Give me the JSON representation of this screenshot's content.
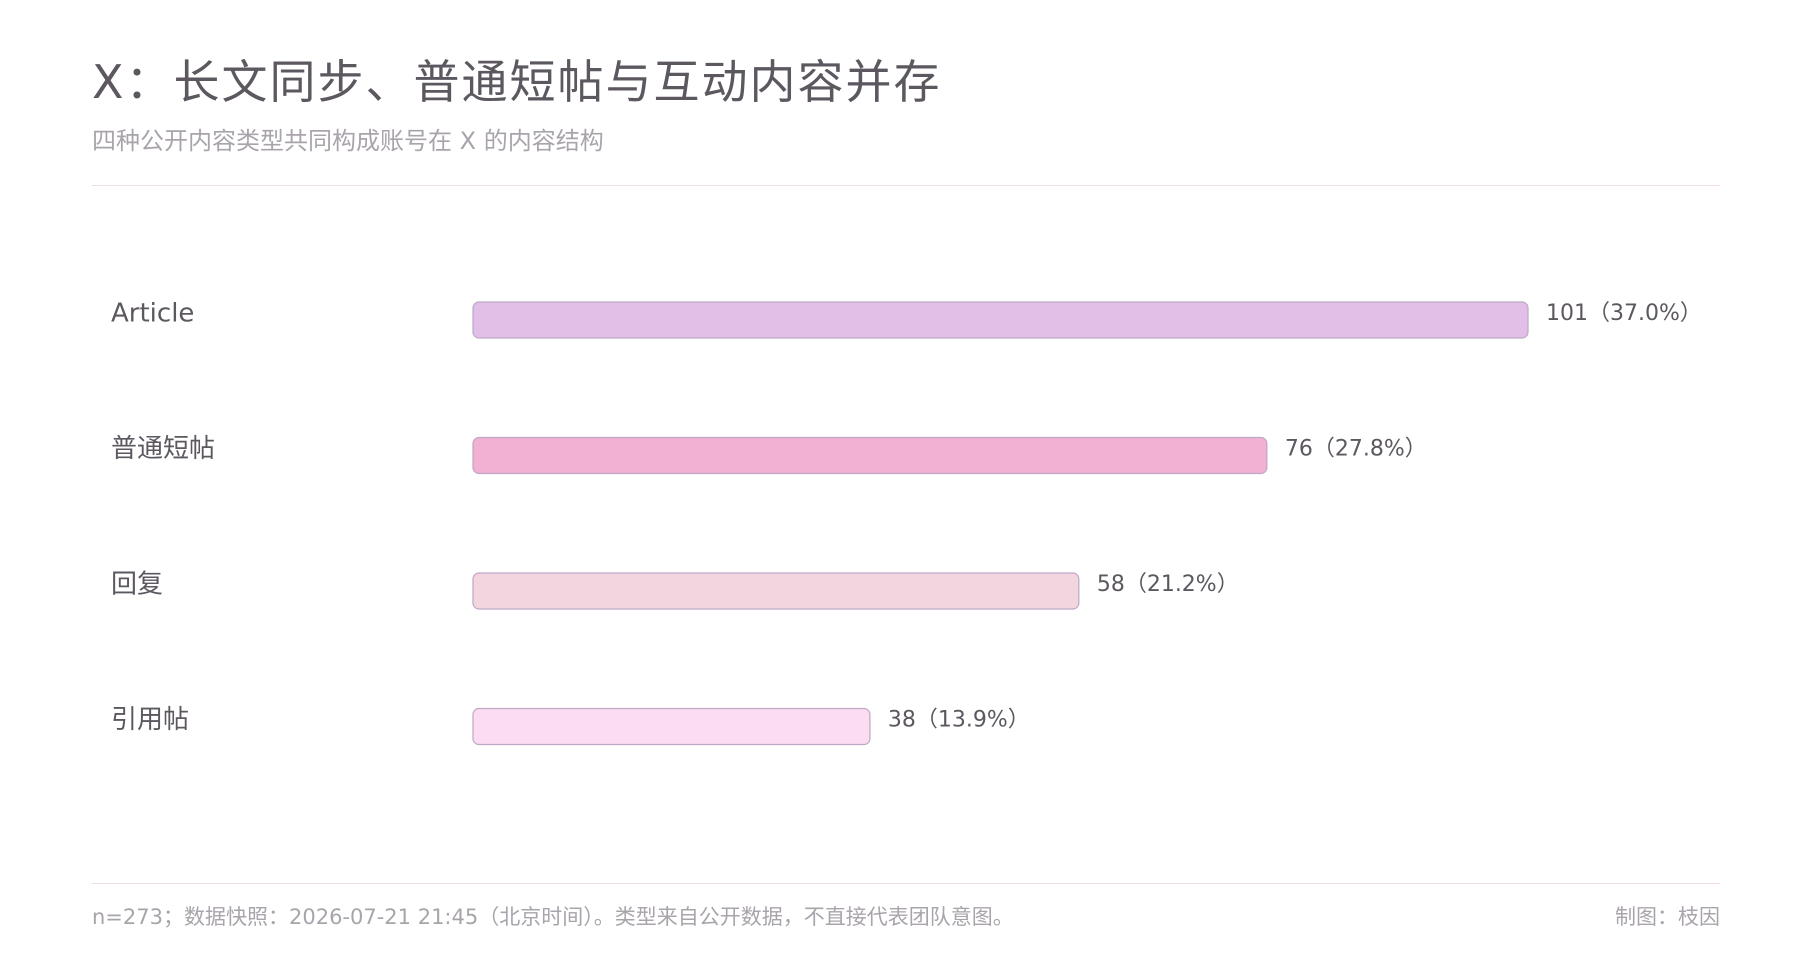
{
  "header": {
    "title": "X：长文同步、普通短帖与互动内容并存",
    "subtitle": "四种公开内容类型共同构成账号在 X 的内容结构"
  },
  "footer": {
    "note": "n=273；数据快照：2026-07-21 21:45（北京时间）。类型来自公开数据，不直接代表团队意图。",
    "credit": "制图：枝因"
  },
  "chart_data": {
    "type": "bar",
    "orientation": "horizontal",
    "categories": [
      "Article",
      "普通短帖",
      "回复",
      "引用帖"
    ],
    "values": [
      101,
      76,
      58,
      38
    ],
    "value_labels": [
      "101（37.0%）",
      "76（27.8%）",
      "58（21.2%）",
      "38（13.9%）"
    ],
    "bar_colors": [
      "#e2bfe7",
      "#f2b0d3",
      "#f3d5df",
      "#fcdcf2"
    ],
    "bar_stroke": "#bfa7c6",
    "grid": false,
    "legend": "none"
  }
}
